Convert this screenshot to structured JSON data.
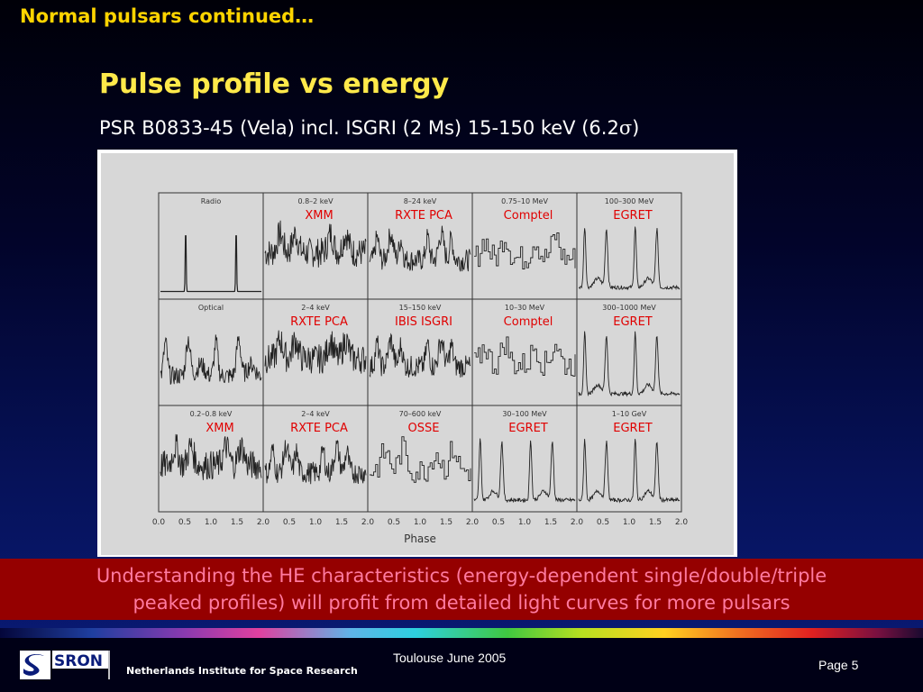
{
  "slide": {
    "top_title": "Normal pulsars continued…",
    "heading": "Pulse profile vs energy",
    "subheading_prefix": "PSR B0833-45 (Vela) incl. ISGRI (2 Ms) 15-150 keV (6.2",
    "subheading_sigma": "σ",
    "subheading_suffix": ")"
  },
  "figure": {
    "xlabel": "Phase",
    "xticks": [
      "0.0",
      "0.5",
      "1.0",
      "1.5",
      "2.0"
    ],
    "colors": {
      "trace": "#222222",
      "instrument_label": "#e00000",
      "background": "#d7d7d7"
    },
    "panels": [
      {
        "row": 0,
        "col": 0,
        "band": "Radio",
        "instrument": "",
        "shape": "radio"
      },
      {
        "row": 0,
        "col": 1,
        "band": "0.8–2 keV",
        "instrument": "XMM",
        "shape": "noisy"
      },
      {
        "row": 0,
        "col": 2,
        "band": "8–24 keV",
        "instrument": "RXTE PCA",
        "shape": "triple"
      },
      {
        "row": 0,
        "col": 3,
        "band": "0.75–10 MeV",
        "instrument": "Comptel",
        "shape": "step"
      },
      {
        "row": 0,
        "col": 4,
        "band": "100–300 MeV",
        "instrument": "EGRET",
        "shape": "double"
      },
      {
        "row": 1,
        "col": 0,
        "band": "Optical",
        "instrument": "",
        "shape": "optical"
      },
      {
        "row": 1,
        "col": 1,
        "band": "2–4 keV",
        "instrument": "RXTE PCA",
        "shape": "noisy"
      },
      {
        "row": 1,
        "col": 2,
        "band": "15–150 keV",
        "instrument": "IBIS ISGRI",
        "shape": "triple"
      },
      {
        "row": 1,
        "col": 3,
        "band": "10–30 MeV",
        "instrument": "Comptel",
        "shape": "step"
      },
      {
        "row": 1,
        "col": 4,
        "band": "300–1000 MeV",
        "instrument": "EGRET",
        "shape": "double"
      },
      {
        "row": 2,
        "col": 0,
        "band": "0.2–0.8 keV",
        "instrument": "XMM",
        "shape": "noisy"
      },
      {
        "row": 2,
        "col": 1,
        "band": "2–4 keV",
        "instrument": "RXTE PCA",
        "shape": "triple"
      },
      {
        "row": 2,
        "col": 2,
        "band": "70–600 keV",
        "instrument": "OSSE",
        "shape": "osse"
      },
      {
        "row": 2,
        "col": 3,
        "band": "30–100 MeV",
        "instrument": "EGRET",
        "shape": "double"
      },
      {
        "row": 2,
        "col": 4,
        "band": "1–10 GeV",
        "instrument": "EGRET",
        "shape": "double"
      }
    ]
  },
  "banner": {
    "line1": "Understanding the HE characteristics (energy-dependent single/double/triple",
    "line2": "peaked profiles) will profit from detailed light curves for more pulsars"
  },
  "footer": {
    "logo_text": "SRON",
    "organization": "Netherlands Institute for Space Research",
    "event": "Toulouse June 2005",
    "page": "Page 5"
  }
}
